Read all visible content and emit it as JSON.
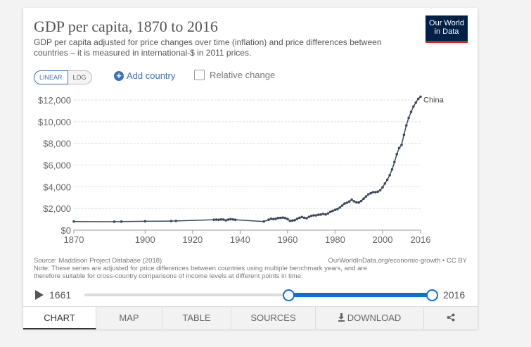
{
  "header": {
    "title": "GDP per capita, 1870 to 2016",
    "subtitle": "GDP per capita adjusted for price changes over time (inflation) and price differences between countries – it is measured in international-$ in 2011 prices.",
    "logo_line1": "Our World",
    "logo_line2": "in Data"
  },
  "controls": {
    "linear_label": "LINEAR",
    "log_label": "LOG",
    "add_country_label": "Add country",
    "relative_change_label": "Relative change",
    "scale": "linear"
  },
  "chart_data": {
    "type": "line",
    "title": "GDP per capita, 1870 to 2016",
    "xlabel": "",
    "ylabel": "",
    "xlim": [
      1870,
      2016
    ],
    "ylim": [
      0,
      12000
    ],
    "x_ticks": [
      "1870",
      "1900",
      "1920",
      "1940",
      "1960",
      "1980",
      "2000",
      "2016"
    ],
    "x_tick_values": [
      1870,
      1900,
      1920,
      1940,
      1960,
      1980,
      2000,
      2016
    ],
    "y_ticks": [
      "$0",
      "$2,000",
      "$4,000",
      "$6,000",
      "$8,000",
      "$10,000",
      "$12,000"
    ],
    "y_tick_values": [
      0,
      2000,
      4000,
      6000,
      8000,
      10000,
      12000
    ],
    "grid": true,
    "series": [
      {
        "name": "China",
        "color": "#3d4a5c",
        "points": [
          [
            1870,
            800
          ],
          [
            1887,
            780
          ],
          [
            1890,
            790
          ],
          [
            1900,
            820
          ],
          [
            1911,
            840
          ],
          [
            1913,
            850
          ],
          [
            1929,
            960
          ],
          [
            1930,
            970
          ],
          [
            1931,
            960
          ],
          [
            1932,
            990
          ],
          [
            1933,
            980
          ],
          [
            1934,
            900
          ],
          [
            1935,
            970
          ],
          [
            1936,
            1010
          ],
          [
            1937,
            990
          ],
          [
            1938,
            960
          ],
          [
            1950,
            800
          ],
          [
            1952,
            960
          ],
          [
            1953,
            1050
          ],
          [
            1954,
            1020
          ],
          [
            1955,
            1040
          ],
          [
            1956,
            1120
          ],
          [
            1957,
            1130
          ],
          [
            1958,
            1160
          ],
          [
            1959,
            1120
          ],
          [
            1960,
            1020
          ],
          [
            1961,
            860
          ],
          [
            1962,
            880
          ],
          [
            1963,
            920
          ],
          [
            1964,
            1040
          ],
          [
            1965,
            1140
          ],
          [
            1966,
            1210
          ],
          [
            1967,
            1140
          ],
          [
            1968,
            1100
          ],
          [
            1969,
            1220
          ],
          [
            1970,
            1320
          ],
          [
            1971,
            1360
          ],
          [
            1972,
            1360
          ],
          [
            1973,
            1420
          ],
          [
            1974,
            1440
          ],
          [
            1975,
            1500
          ],
          [
            1976,
            1450
          ],
          [
            1977,
            1540
          ],
          [
            1978,
            1680
          ],
          [
            1979,
            1780
          ],
          [
            1980,
            1870
          ],
          [
            1981,
            1940
          ],
          [
            1982,
            2080
          ],
          [
            1983,
            2270
          ],
          [
            1984,
            2460
          ],
          [
            1985,
            2530
          ],
          [
            1986,
            2640
          ],
          [
            1987,
            2810
          ],
          [
            1988,
            2660
          ],
          [
            1989,
            2560
          ],
          [
            1990,
            2550
          ],
          [
            1991,
            2690
          ],
          [
            1992,
            2900
          ],
          [
            1993,
            3100
          ],
          [
            1994,
            3300
          ],
          [
            1995,
            3400
          ],
          [
            1996,
            3500
          ],
          [
            1997,
            3500
          ],
          [
            1998,
            3550
          ],
          [
            1999,
            3680
          ],
          [
            2000,
            3950
          ],
          [
            2001,
            4300
          ],
          [
            2002,
            4650
          ],
          [
            2003,
            5070
          ],
          [
            2004,
            5600
          ],
          [
            2005,
            6280
          ],
          [
            2006,
            7000
          ],
          [
            2007,
            7570
          ],
          [
            2008,
            7860
          ],
          [
            2009,
            8800
          ],
          [
            2010,
            9650
          ],
          [
            2011,
            10350
          ],
          [
            2012,
            10900
          ],
          [
            2013,
            11400
          ],
          [
            2014,
            11750
          ],
          [
            2015,
            12100
          ],
          [
            2016,
            12300
          ]
        ]
      }
    ]
  },
  "footer": {
    "source": "Source: Maddison Project Database (2018)",
    "credit": "OurWorldInData.org/economic-growth • CC BY",
    "note_line1": "Note: These series are adjusted for price differences between countries using multiple benchmark years, and are",
    "note_line2": "therefore suitable for cross-country comparisons of income levels at different points in time."
  },
  "timeline": {
    "start_label": "1661",
    "end_label": "2016",
    "range_start_year": 1870,
    "range_end_year": 2016
  },
  "tabs": {
    "chart": "CHART",
    "map": "MAP",
    "table": "TABLE",
    "sources": "SOURCES",
    "download": "DOWNLOAD"
  }
}
